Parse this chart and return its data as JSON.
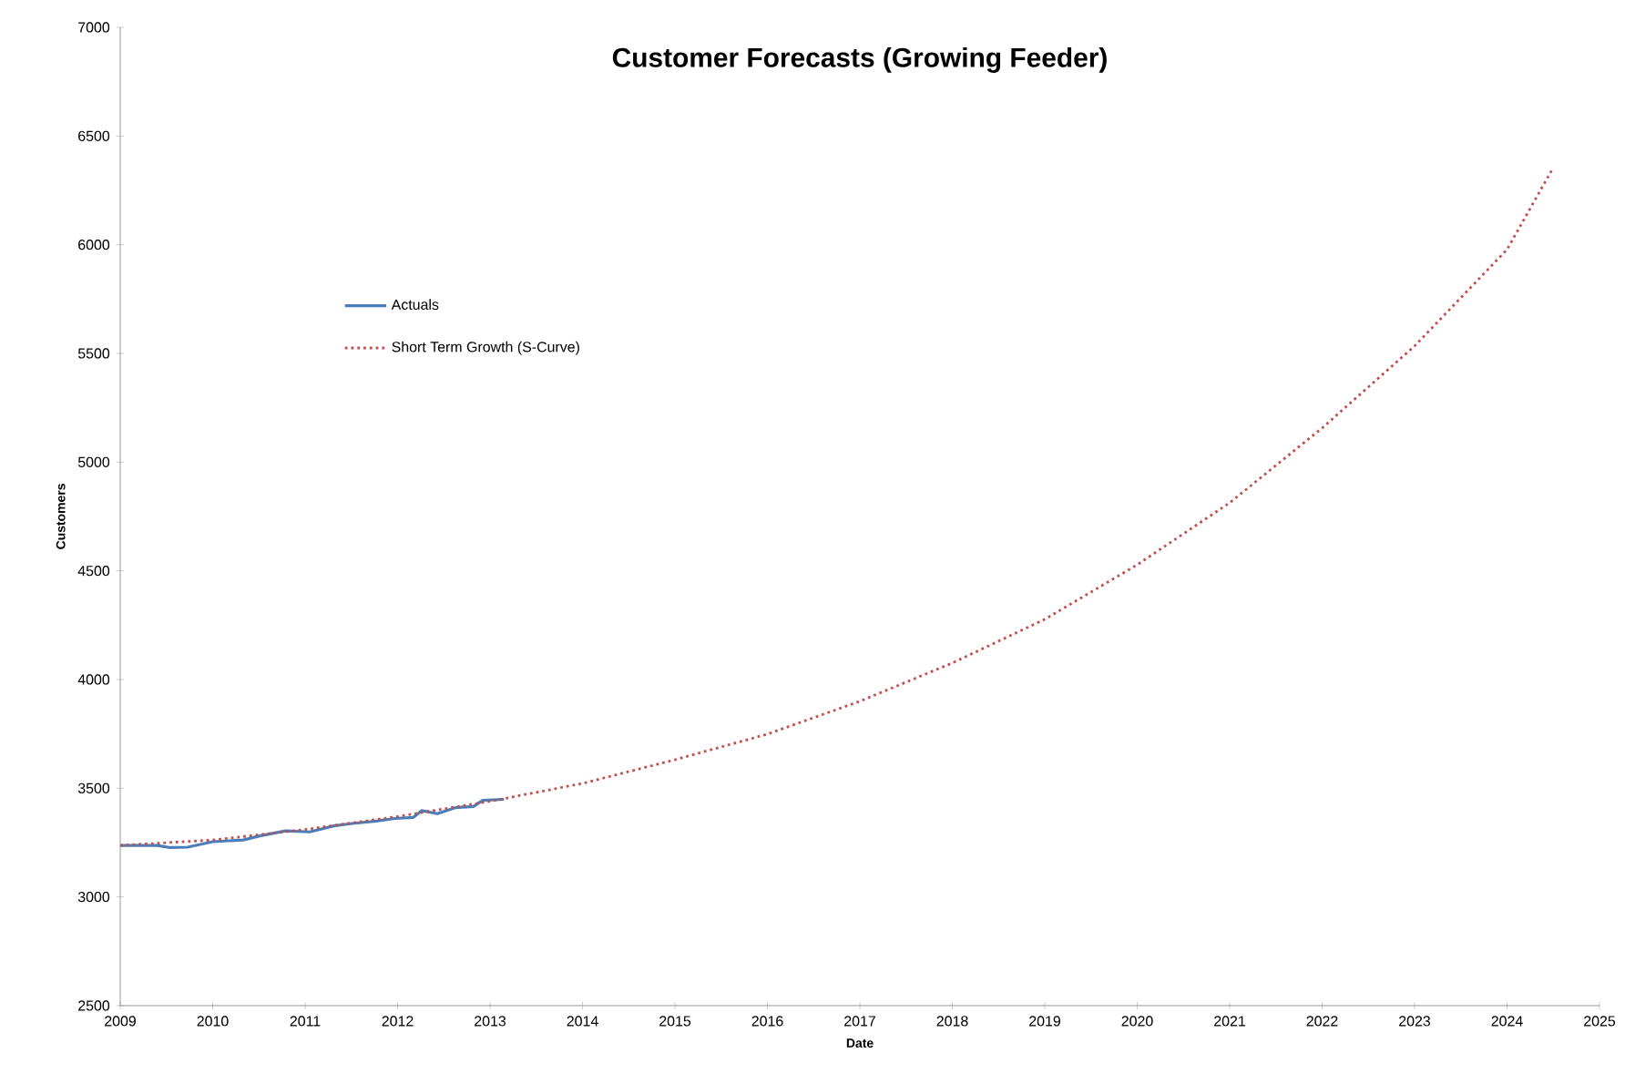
{
  "chart_data": {
    "type": "line",
    "title": "Customer Forecasts (Growing Feeder)",
    "xlabel": "Date",
    "ylabel": "Customers",
    "xlim": [
      2009,
      2025
    ],
    "ylim": [
      2500,
      7000
    ],
    "xticks": [
      2009,
      2010,
      2011,
      2012,
      2013,
      2014,
      2015,
      2016,
      2017,
      2018,
      2019,
      2020,
      2021,
      2022,
      2023,
      2024,
      2025
    ],
    "yticks": [
      2500,
      3000,
      3500,
      4000,
      4500,
      5000,
      5500,
      6000,
      6500,
      7000
    ],
    "legend": "top left",
    "series": [
      {
        "name": "Actuals",
        "color": "#4a7ebb",
        "line_style": "solid",
        "x": [
          2009.0,
          2009.4,
          2009.54,
          2009.73,
          2010.0,
          2010.33,
          2010.52,
          2010.79,
          2011.05,
          2011.31,
          2011.51,
          2011.77,
          2011.97,
          2012.17,
          2012.26,
          2012.43,
          2012.63,
          2012.82,
          2012.92,
          2013.15
        ],
        "values": [
          3237,
          3237,
          3227,
          3229,
          3254,
          3262,
          3282,
          3304,
          3299,
          3327,
          3338,
          3349,
          3361,
          3366,
          3397,
          3383,
          3411,
          3416,
          3444,
          3449
        ]
      },
      {
        "name": "Short Term Growth (S-Curve)",
        "color": "#c0504d",
        "line_style": "dotted",
        "x": [
          2009,
          2010,
          2011,
          2012,
          2013,
          2014,
          2015,
          2016,
          2017,
          2018,
          2019,
          2020,
          2021,
          2022,
          2023,
          2024,
          2024.5
        ],
        "values": [
          3237,
          3262,
          3310,
          3370,
          3440,
          3522,
          3631,
          3749,
          3900,
          4076,
          4277,
          4528,
          4813,
          5157,
          5534,
          5978,
          6355
        ]
      }
    ]
  }
}
